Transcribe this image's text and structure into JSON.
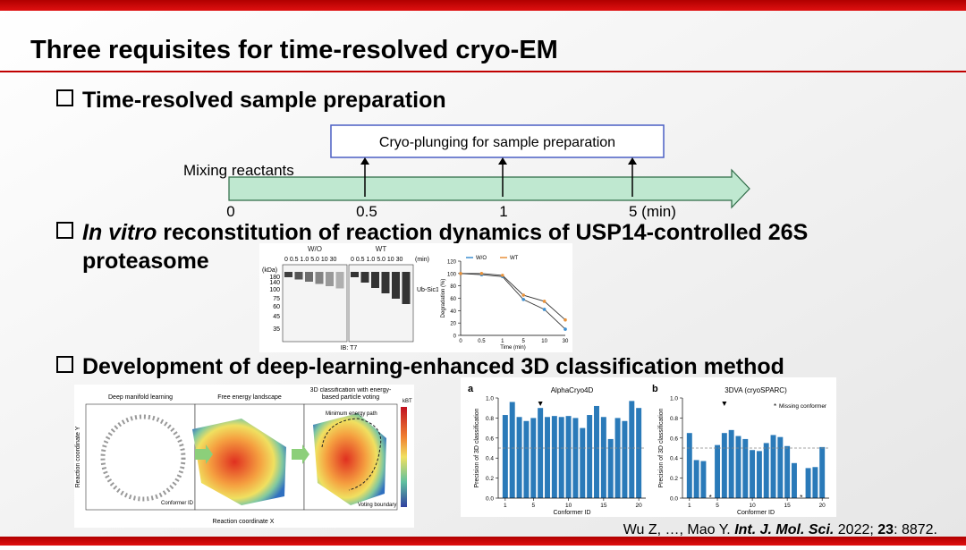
{
  "slide": {
    "title": "Three requisites for time-resolved cryo-EM",
    "bullets": [
      {
        "text": "Time-resolved sample preparation"
      },
      {
        "italic": "In vitro",
        "text": " reconstitution of reaction dynamics of USP14-controlled 26S",
        "text2": "proteasome"
      },
      {
        "text": "Development of deep-learning-enhanced 3D classification method"
      }
    ],
    "timeline": {
      "box": "Cryo-plunging for sample preparation",
      "start": "Mixing reactants",
      "labels": [
        "0",
        "0.5",
        "1",
        "5 (min)"
      ]
    },
    "gel": {
      "groups": [
        "W/O",
        "WT"
      ],
      "lanes": "0  0.5 1.0 5.0 10  30",
      "unit": "(min)",
      "kda": "(kDa)",
      "markers": [
        "180",
        "140",
        "100",
        "75",
        "60",
        "45",
        "35"
      ],
      "band_label": "Ub-Sic1",
      "blot": "IB: T7"
    },
    "manifold": {
      "panels": [
        "Deep manifold learning",
        "Free energy landscape",
        "3D classification with energy-based particle voting"
      ],
      "xlabel": "Reaction coordinate X",
      "ylabel": "Reaction coordinate Y",
      "conformer": "Conformer ID",
      "path": "Minimum energy path",
      "boundary": "Voting boundary",
      "cbar": "kBT"
    },
    "citation": {
      "authors": "Wu Z, …, Mao Y. ",
      "journal": "Int. J. Mol. Sci.",
      "year": " 2022; ",
      "volume": "23",
      "pages": ": 8872."
    }
  },
  "chart_data": [
    {
      "type": "bar",
      "panel": "a",
      "title": "AlphaCryo4D",
      "xlabel": "Conformer ID",
      "ylabel": "Precision of 3D classification",
      "color": "#2a7ab9",
      "x": [
        1,
        2,
        3,
        4,
        5,
        6,
        7,
        8,
        9,
        10,
        11,
        12,
        13,
        14,
        15,
        16,
        17,
        18,
        19,
        20
      ],
      "values": [
        0.83,
        0.96,
        0.81,
        0.77,
        0.8,
        0.9,
        0.81,
        0.82,
        0.81,
        0.82,
        0.8,
        0.7,
        0.83,
        0.92,
        0.81,
        0.59,
        0.8,
        0.77,
        0.97,
        0.9
      ],
      "xlim": [
        0,
        21
      ],
      "xticks": [
        1,
        5,
        10,
        15,
        20
      ],
      "ylim": [
        0,
        1
      ],
      "yticks": [
        {
          "value": 0,
          "label": "0.0"
        },
        {
          "value": 0.2,
          "label": "0.2"
        },
        {
          "value": 0.4,
          "label": "0.4"
        },
        {
          "value": 0.6,
          "label": "0.6"
        },
        {
          "value": 0.8,
          "label": "0.8"
        },
        {
          "value": 1,
          "label": "1.0"
        }
      ],
      "hline": 0.5
    },
    {
      "type": "bar",
      "panel": "b",
      "title": "3DVA (cryoSPARC)",
      "xlabel": "Conformer ID",
      "ylabel": "Precision of 3D classification",
      "color": "#2a7ab9",
      "missing_marker": "*",
      "missing_label": "Missing conformer",
      "x": [
        1,
        2,
        3,
        4,
        5,
        6,
        7,
        8,
        9,
        10,
        11,
        12,
        13,
        14,
        15,
        16,
        17,
        18,
        19,
        20
      ],
      "values": [
        0.65,
        0.38,
        0.37,
        null,
        0.53,
        0.65,
        0.68,
        0.62,
        0.59,
        0.48,
        0.47,
        0.55,
        0.63,
        0.61,
        0.52,
        0.35,
        null,
        0.3,
        0.31,
        0.51
      ],
      "xlim": [
        0,
        21
      ],
      "xticks": [
        1,
        5,
        10,
        15,
        20
      ],
      "ylim": [
        0,
        1
      ],
      "yticks": [
        {
          "value": 0,
          "label": "0.0"
        },
        {
          "value": 0.2,
          "label": "0.2"
        },
        {
          "value": 0.4,
          "label": "0.4"
        },
        {
          "value": 0.6,
          "label": "0.6"
        },
        {
          "value": 0.8,
          "label": "0.8"
        },
        {
          "value": 1,
          "label": "1.0"
        }
      ],
      "hline": 0.5
    },
    {
      "type": "line",
      "xlabel": "Time (min)",
      "ylabel": "Degradation (%)",
      "categories": [
        "0",
        "0.5",
        "1",
        "5",
        "10",
        "30"
      ],
      "series": [
        {
          "name": "W/O",
          "color": "#3d8fd1",
          "values": [
            100,
            98,
            95,
            58,
            42,
            10
          ]
        },
        {
          "name": "WT",
          "color": "#e8913a",
          "values": [
            100,
            100,
            97,
            65,
            55,
            25
          ]
        }
      ],
      "ylim": [
        0,
        120
      ],
      "yticks": [
        0,
        20,
        40,
        60,
        80,
        100,
        120
      ]
    }
  ]
}
